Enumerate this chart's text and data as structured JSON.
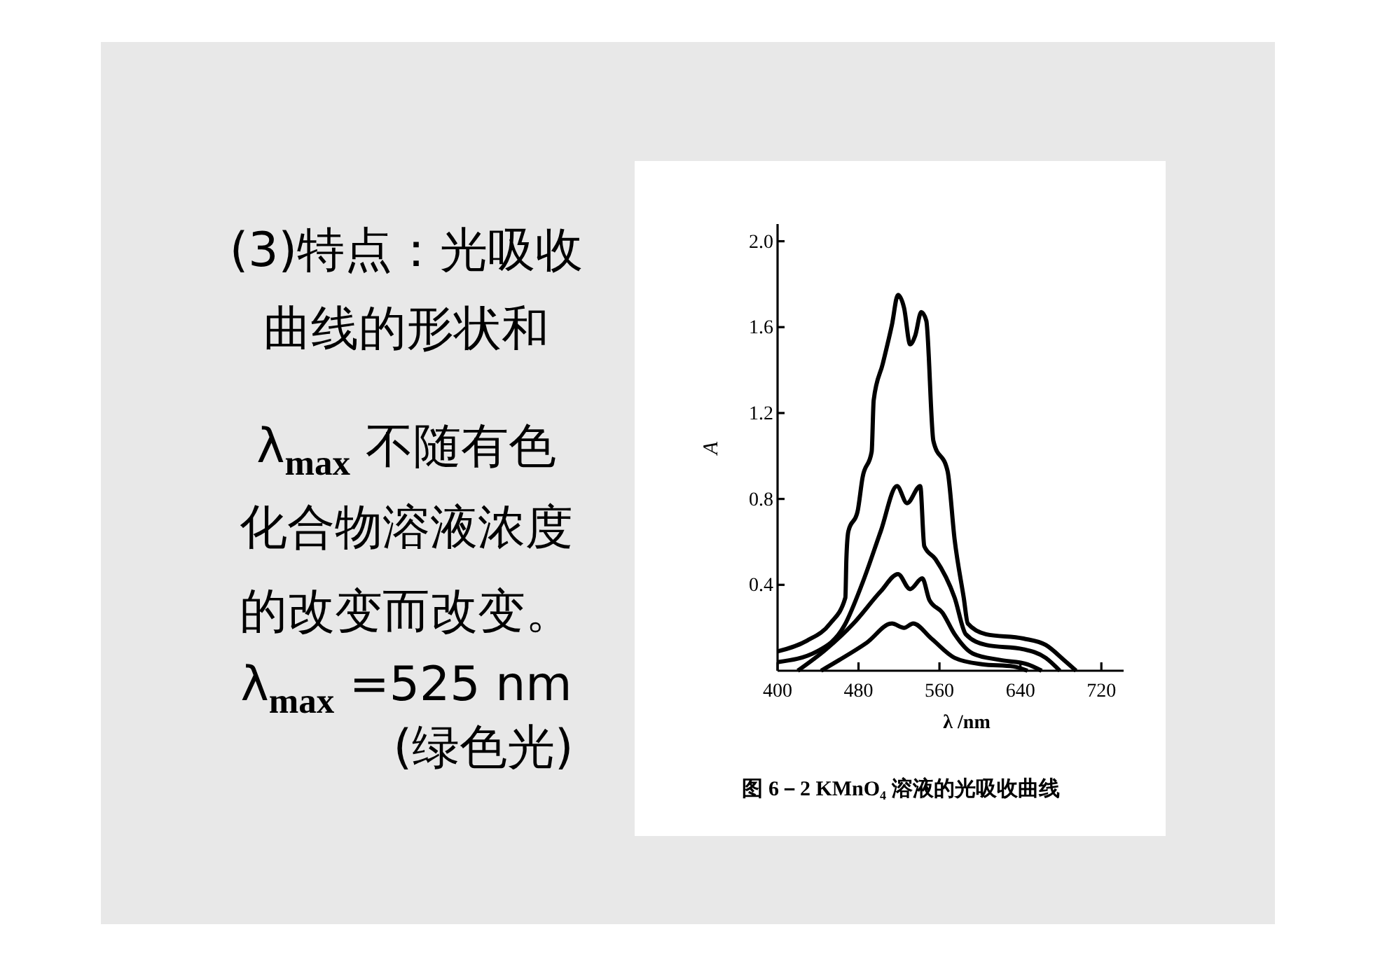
{
  "chart_data": {
    "type": "line",
    "title": "图 6－2  KMnO₄ 溶液的光吸收曲线",
    "xlabel": "λ /nm",
    "ylabel": "A",
    "annotations": [
      "(3)特点：光吸收",
      "曲线的形状和",
      "λ$_{max}$ 不随有色",
      "化合物溶液浓度",
      "的改变而改变。",
      "λ$_{max}$ =525  nm",
      "(绿色光)"
    ],
    "xlim": [
      400,
      742
    ],
    "ylim": [
      0,
      2.08
    ],
    "xticks": [
      400,
      480,
      560,
      640,
      720
    ],
    "yticks": [
      0.4,
      0.8,
      1.2,
      1.6,
      {
        "value": 2,
        "label": "2.0"
      }
    ],
    "marker": "none",
    "line_style": "solid",
    "series": [
      {
        "color": "#000000",
        "x": [
          400,
          429,
          452,
          467,
          468,
          470,
          479,
          484,
          493,
          495,
          504,
          513,
          519,
          525,
          531,
          536,
          542,
          547,
          554,
          568,
          575,
          584,
          588,
          606,
          643,
          665,
          683,
          695
        ],
        "values": [
          0.09,
          0.14,
          0.22,
          0.34,
          0.52,
          0.65,
          0.74,
          0.9,
          1.02,
          1.26,
          1.43,
          1.61,
          1.75,
          1.69,
          1.52,
          1.56,
          1.67,
          1.63,
          1.07,
          0.93,
          0.61,
          0.34,
          0.22,
          0.17,
          0.15,
          0.12,
          0.05,
          0
        ]
      },
      {
        "color": "#000000",
        "x": [
          400,
          439,
          466,
          484,
          502,
          518,
          528,
          541,
          545,
          556,
          575,
          586,
          606,
          643,
          665,
          679
        ],
        "values": [
          0.04,
          0.09,
          0.21,
          0.41,
          0.65,
          0.86,
          0.78,
          0.86,
          0.58,
          0.52,
          0.34,
          0.17,
          0.12,
          0.1,
          0.06,
          0
        ]
      },
      {
        "color": "#000000",
        "x": [
          420,
          448,
          475,
          502,
          519,
          531,
          543,
          550,
          563,
          575,
          593,
          620,
          647,
          661
        ],
        "values": [
          0,
          0.1,
          0.22,
          0.37,
          0.45,
          0.38,
          0.43,
          0.33,
          0.27,
          0.17,
          0.08,
          0.05,
          0.03,
          0
        ]
      },
      {
        "color": "#000000",
        "x": [
          443,
          461,
          488,
          513,
          525,
          534,
          552,
          575,
          602,
          633,
          647
        ],
        "values": [
          0,
          0.05,
          0.13,
          0.22,
          0.2,
          0.22,
          0.15,
          0.06,
          0.03,
          0.02,
          0
        ]
      }
    ]
  }
}
